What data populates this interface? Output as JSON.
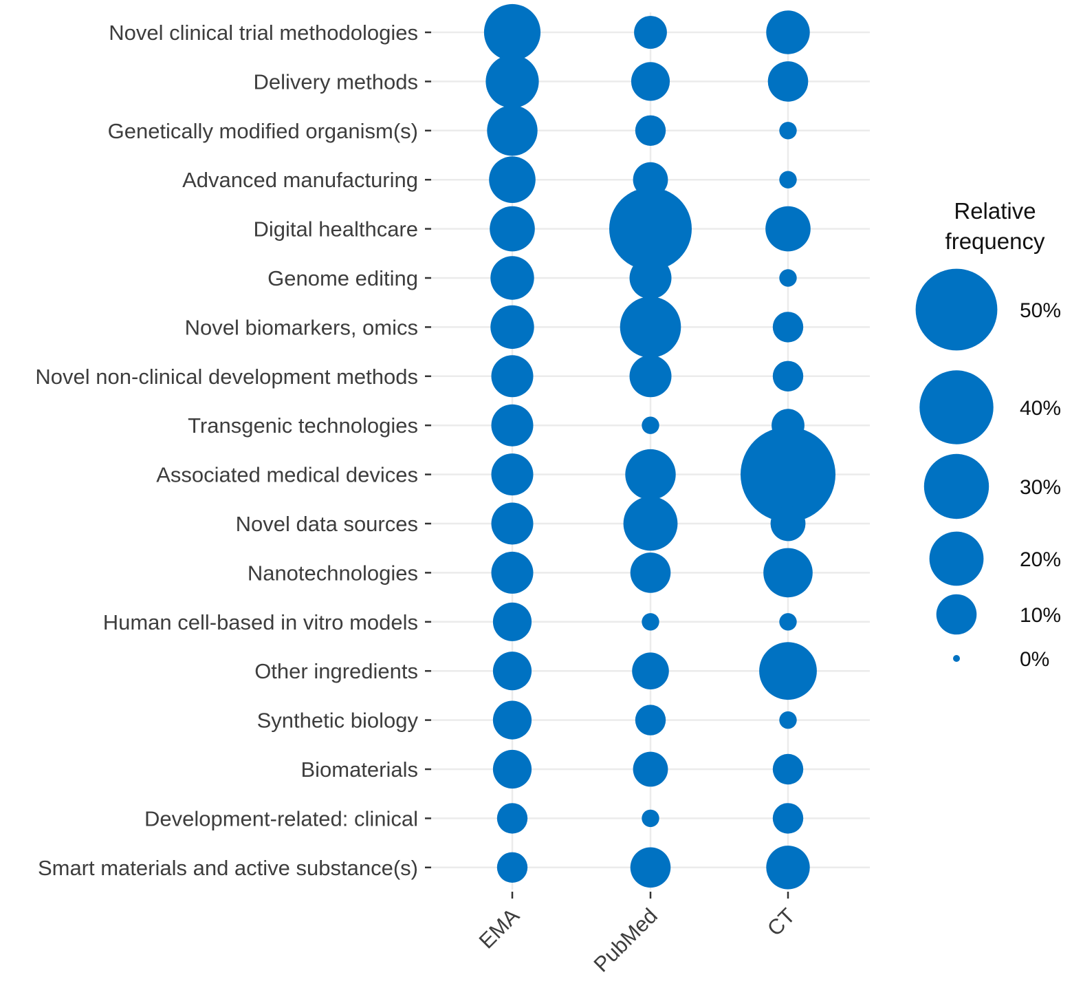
{
  "chart_data": {
    "type": "bubble",
    "categories": [
      "Novel clinical trial methodologies",
      "Delivery methods",
      "Genetically modified organism(s)",
      "Advanced manufacturing",
      "Digital healthcare",
      "Genome editing",
      "Novel biomarkers, omics",
      "Novel non-clinical development methods",
      "Transgenic technologies",
      "Associated medical devices",
      "Novel data sources",
      "Nanotechnologies",
      "Human cell-based in vitro models",
      "Other ingredients",
      "Synthetic biology",
      "Biomaterials",
      "Development-related: clinical",
      "Smart materials and active substance(s)"
    ],
    "x_categories": [
      "EMA",
      "PubMed",
      "CT"
    ],
    "series": [
      {
        "name": "EMA",
        "values": [
          22,
          19,
          17,
          14,
          13,
          12,
          12,
          11,
          11,
          11,
          11,
          11,
          9,
          9,
          9,
          9,
          5,
          5
        ]
      },
      {
        "name": "PubMed",
        "values": [
          6,
          9,
          5,
          7,
          51,
          11,
          26,
          11,
          1,
          17,
          20,
          10,
          1,
          8,
          5,
          7,
          1,
          10
        ]
      },
      {
        "name": "CT",
        "values": [
          12,
          10,
          1,
          1,
          13,
          1,
          5,
          5,
          6,
          69,
          7,
          16,
          1,
          23,
          1,
          5,
          5,
          12
        ]
      }
    ],
    "color": "#0072c2",
    "legend": {
      "title_line1": "Relative",
      "title_line2": "frequency",
      "entries": [
        {
          "label": "50%",
          "value": 50
        },
        {
          "label": "40%",
          "value": 40
        },
        {
          "label": "30%",
          "value": 30
        },
        {
          "label": "20%",
          "value": 20
        },
        {
          "label": "10%",
          "value": 10
        },
        {
          "label": "0%",
          "value": 0
        }
      ],
      "position": "right"
    },
    "grid": true,
    "size_unit": "%"
  }
}
